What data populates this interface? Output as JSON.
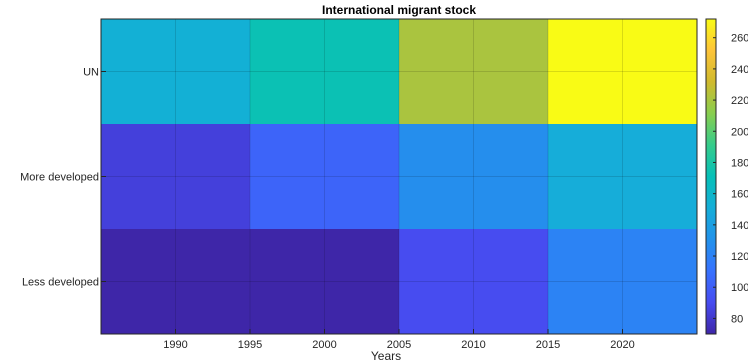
{
  "chart_data": {
    "type": "heatmap",
    "title": "International migrant stock",
    "xlabel": "Years",
    "ylabel": "",
    "rows": [
      "UN",
      "More developed",
      "Less developed"
    ],
    "x_ticks": [
      1990,
      1995,
      2000,
      2005,
      2010,
      2015,
      2020
    ],
    "x_range": [
      1985,
      2025
    ],
    "column_edges": [
      1985,
      1995,
      2005,
      2015,
      2025
    ],
    "values": [
      [
        153,
        173,
        221,
        272
      ],
      [
        84,
        103,
        128,
        150
      ],
      [
        69,
        69,
        90,
        121
      ]
    ],
    "colorbar": {
      "min": 70,
      "max": 272,
      "ticks": [
        80,
        100,
        120,
        140,
        160,
        180,
        200,
        220,
        240,
        260
      ]
    },
    "colormap": "parula",
    "grid": true
  }
}
